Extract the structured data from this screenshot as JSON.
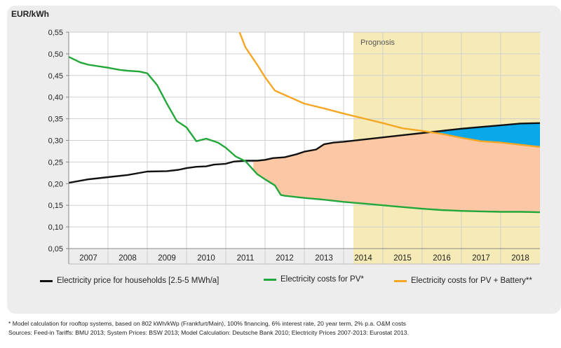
{
  "chart_data": {
    "type": "line",
    "ylabel": "EUR/kWh",
    "ylim": [
      0.05,
      0.55
    ],
    "yticks": [
      "0,05",
      "0,10",
      "0,15",
      "0,20",
      "0,25",
      "0,30",
      "0,35",
      "0,40",
      "0,45",
      "0,50",
      "0,55"
    ],
    "categories": [
      "2007",
      "2008",
      "2009",
      "2010",
      "2011",
      "2012",
      "2013",
      "2014",
      "2015",
      "2016",
      "2017",
      "2018"
    ],
    "xlim": [
      2006.5,
      2018.5
    ],
    "forecast_start": 2013.75,
    "forecast_label": "Prognosis",
    "grid": true,
    "series": [
      {
        "name": "Electricity price for households [2.5-5 MWh/a]",
        "color": "#111111",
        "x": [
          2006.5,
          2007.0,
          2007.5,
          2008.0,
          2008.5,
          2009.0,
          2009.3,
          2009.5,
          2009.75,
          2010.0,
          2010.2,
          2010.5,
          2010.7,
          2011.0,
          2011.3,
          2011.5,
          2011.7,
          2012.0,
          2012.3,
          2012.5,
          2012.8,
          2013.0,
          2013.25,
          2013.5,
          2014.0,
          2014.5,
          2015.0,
          2015.5,
          2016.0,
          2016.5,
          2017.0,
          2017.5,
          2018.0,
          2018.5
        ],
        "y": [
          0.202,
          0.21,
          0.215,
          0.22,
          0.228,
          0.229,
          0.232,
          0.236,
          0.239,
          0.24,
          0.244,
          0.246,
          0.251,
          0.253,
          0.253,
          0.255,
          0.259,
          0.261,
          0.268,
          0.274,
          0.279,
          0.291,
          0.295,
          0.297,
          0.302,
          0.307,
          0.312,
          0.317,
          0.322,
          0.327,
          0.331,
          0.335,
          0.339,
          0.34
        ]
      },
      {
        "name": "Electricity costs for PV*",
        "color": "#22a83a",
        "x": [
          2006.5,
          2006.8,
          2007.0,
          2007.5,
          2007.8,
          2008.0,
          2008.3,
          2008.5,
          2008.75,
          2009.0,
          2009.25,
          2009.5,
          2009.75,
          2010.0,
          2010.3,
          2010.5,
          2010.75,
          2011.0,
          2011.3,
          2011.5,
          2011.75,
          2011.9,
          2012.0,
          2012.5,
          2013.0,
          2013.5,
          2014.0,
          2014.5,
          2015.0,
          2015.5,
          2016.0,
          2016.5,
          2017.0,
          2017.5,
          2018.0,
          2018.5
        ],
        "y": [
          0.493,
          0.48,
          0.475,
          0.468,
          0.463,
          0.461,
          0.459,
          0.455,
          0.428,
          0.385,
          0.345,
          0.33,
          0.298,
          0.304,
          0.295,
          0.283,
          0.263,
          0.252,
          0.222,
          0.21,
          0.196,
          0.174,
          0.172,
          0.167,
          0.163,
          0.158,
          0.154,
          0.15,
          0.146,
          0.142,
          0.139,
          0.137,
          0.136,
          0.135,
          0.135,
          0.134
        ]
      },
      {
        "name": "Electricity costs for PV + Battery**",
        "color": "#f5a623",
        "x": [
          2010.85,
          2011.0,
          2011.3,
          2011.5,
          2011.75,
          2012.0,
          2012.5,
          2013.0,
          2013.5,
          2014.0,
          2014.5,
          2015.0,
          2015.5,
          2016.0,
          2016.5,
          2017.0,
          2017.5,
          2018.0,
          2018.5
        ],
        "y": [
          0.55,
          0.515,
          0.475,
          0.446,
          0.415,
          0.405,
          0.385,
          0.374,
          0.362,
          0.351,
          0.34,
          0.328,
          0.322,
          0.315,
          0.306,
          0.298,
          0.295,
          0.29,
          0.285
        ]
      }
    ],
    "fills": [
      {
        "between": [
          "Electricity costs for PV*",
          "Electricity price for households [2.5-5 MWh/a]"
        ],
        "from": 2011.2,
        "to": 2018.5,
        "color": "#fbc7a4"
      },
      {
        "between": [
          "Electricity costs for PV + Battery**",
          "Electricity price for households [2.5-5 MWh/a]"
        ],
        "from": 2015.8,
        "to": 2018.5,
        "color": "#0aa8e8"
      }
    ]
  },
  "notes": [
    "* Model calculation for rooftop systems, based on 802 kWh/kWp (Frankfurt/Main), 100% financing, 6% interest rate, 20 year term, 2% p.a. O&M costs",
    "Sources: Feed-in Tariffs: BMU 2013; System Prices: BSW 2013; Model Calculation: Deutsche Bank 2010; Electricity Prices 2007-2013: Eurostat 2013."
  ]
}
